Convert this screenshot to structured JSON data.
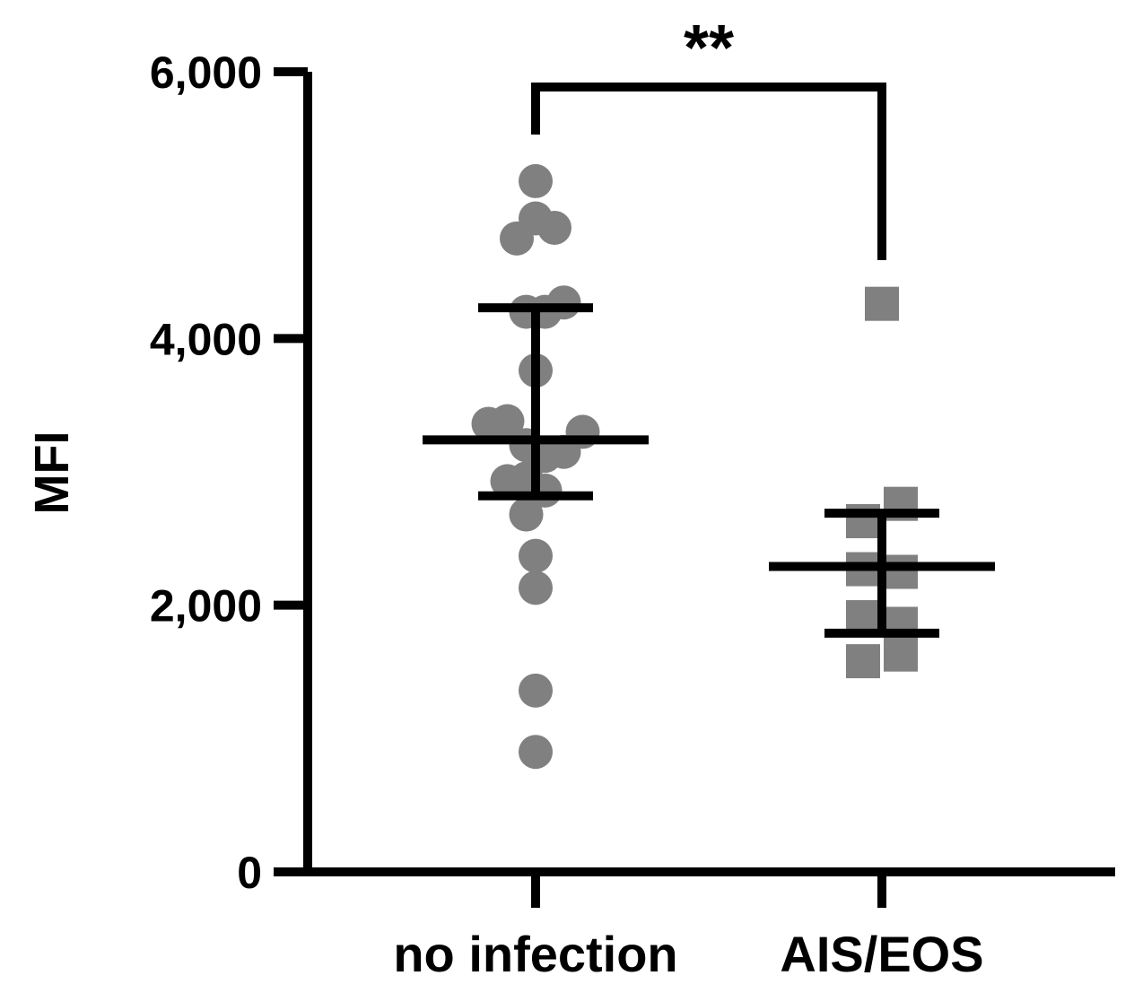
{
  "chart_data": {
    "type": "scatter",
    "title": "",
    "xlabel": "",
    "ylabel": "MFI",
    "ylim": [
      0,
      6000
    ],
    "yticks": [
      0,
      2000,
      4000,
      6000
    ],
    "ytick_labels": [
      "0",
      "2,000",
      "4,000",
      "6,000"
    ],
    "categories": [
      "no infection",
      "AIS/EOS"
    ],
    "grid": false,
    "legend": "none",
    "colors": {
      "points": "#808080",
      "axes": "#000000"
    },
    "series": [
      {
        "category": "no infection",
        "marker": "circle",
        "values": [
          5180,
          4900,
          4750,
          4830,
          4270,
          4200,
          4200,
          3760,
          3360,
          3380,
          3200,
          3120,
          3150,
          3300,
          2930,
          2950,
          2860,
          2680,
          2370,
          2130,
          1360,
          900
        ],
        "jitter": [
          0,
          0,
          -1,
          1,
          1.5,
          -0.5,
          0.5,
          0,
          -2.5,
          -1.5,
          -0.5,
          0.5,
          1.5,
          2.5,
          -1.5,
          -0.5,
          0.5,
          -0.5,
          0,
          0,
          0,
          0
        ],
        "mean": 3240,
        "error_low": 2820,
        "error_high": 4230
      },
      {
        "category": "AIS/EOS",
        "marker": "square",
        "values": [
          4260,
          2760,
          2630,
          2270,
          2250,
          1910,
          1860,
          1580,
          1630
        ],
        "jitter": [
          0,
          1,
          -1,
          -1,
          1,
          -1,
          1,
          -1,
          1
        ],
        "mean": 2290,
        "error_low": 1790,
        "error_high": 2690
      }
    ],
    "significance": {
      "label": "**",
      "between": [
        "no infection",
        "AIS/EOS"
      ]
    }
  }
}
